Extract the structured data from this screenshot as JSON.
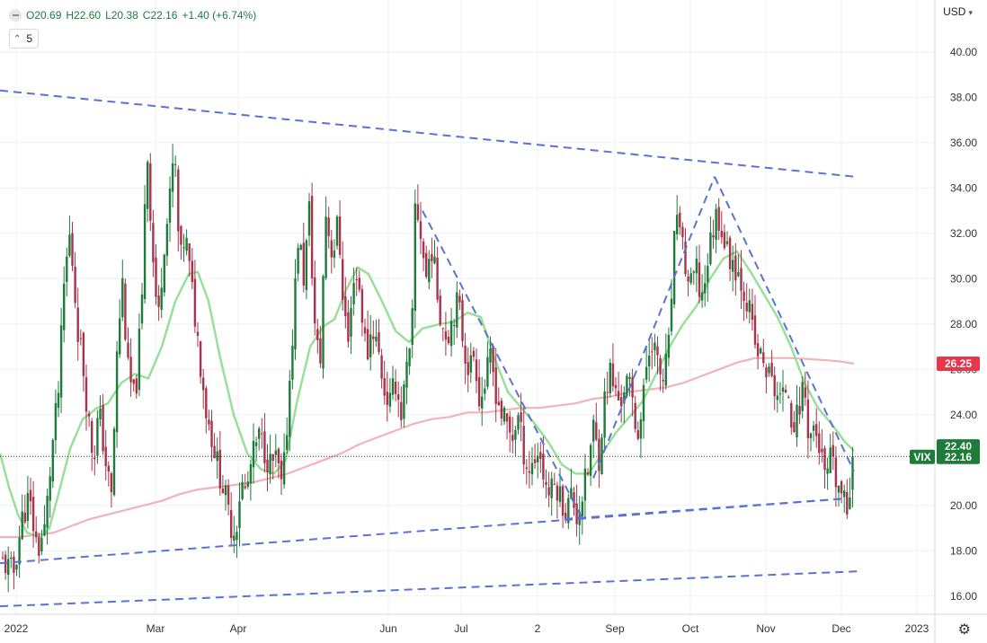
{
  "header": {
    "open": "O20.69",
    "high": "H22.60",
    "low": "L20.38",
    "close": "C22.16",
    "change": "+1.40 (+6.74%)"
  },
  "interval_label": "5",
  "currency_label": "USD",
  "colors": {
    "up": "#1e7b3a",
    "down": "#a8334a",
    "ma_short": "#96df96",
    "ma_long": "#f2b3b7",
    "trendline": "#5a72d6",
    "grid": "#eef0f3",
    "price_badge": "#1e7b3a",
    "ma_long_badge": "#e8374a"
  },
  "chart_data": {
    "type": "candlestick",
    "symbol": "VIX",
    "ylim": [
      15.2,
      41.1
    ],
    "y_ticks": [
      "16.00",
      "18.00",
      "20.00",
      "22.00",
      "24.00",
      "26.00",
      "28.00",
      "30.00",
      "32.00",
      "34.00",
      "36.00",
      "38.00",
      "40.00"
    ],
    "x_range": [
      0,
      1040
    ],
    "x_ticks": [
      {
        "x": 18,
        "label": "2022"
      },
      {
        "x": 173,
        "label": "Mar"
      },
      {
        "x": 265,
        "label": "Apr"
      },
      {
        "x": 432,
        "label": "Jun"
      },
      {
        "x": 513,
        "label": "Jul"
      },
      {
        "x": 598,
        "label": "2"
      },
      {
        "x": 684,
        "label": "Sep"
      },
      {
        "x": 768,
        "label": "Oct"
      },
      {
        "x": 852,
        "label": "Nov"
      },
      {
        "x": 936,
        "label": "Dec"
      },
      {
        "x": 1020,
        "label": "2023"
      }
    ],
    "close_path": [
      [
        3,
        17.5
      ],
      [
        15,
        17.0
      ],
      [
        25,
        19.5
      ],
      [
        32,
        20.3
      ],
      [
        42,
        18.0
      ],
      [
        50,
        19.0
      ],
      [
        58,
        22.5
      ],
      [
        65,
        25.0
      ],
      [
        72,
        30.2
      ],
      [
        78,
        32.0
      ],
      [
        86,
        28.0
      ],
      [
        92,
        26.3
      ],
      [
        98,
        24.0
      ],
      [
        104,
        22.0
      ],
      [
        110,
        24.2
      ],
      [
        118,
        21.8
      ],
      [
        124,
        20.3
      ],
      [
        130,
        26.5
      ],
      [
        136,
        30.0
      ],
      [
        142,
        26.0
      ],
      [
        150,
        24.5
      ],
      [
        158,
        29.0
      ],
      [
        163,
        36.3
      ],
      [
        170,
        31.0
      ],
      [
        176,
        28.0
      ],
      [
        182,
        31.5
      ],
      [
        188,
        33.0
      ],
      [
        194,
        35.8
      ],
      [
        200,
        30.5
      ],
      [
        206,
        32.0
      ],
      [
        212,
        30.0
      ],
      [
        218,
        28.0
      ],
      [
        224,
        26.0
      ],
      [
        230,
        24.0
      ],
      [
        236,
        23.0
      ],
      [
        242,
        21.8
      ],
      [
        250,
        20.5
      ],
      [
        256,
        19.2
      ],
      [
        262,
        18.8
      ],
      [
        268,
        21.0
      ],
      [
        274,
        20.5
      ],
      [
        280,
        22.0
      ],
      [
        288,
        23.0
      ],
      [
        294,
        22.5
      ],
      [
        300,
        21.8
      ],
      [
        308,
        22.0
      ],
      [
        314,
        20.5
      ],
      [
        320,
        24.0
      ],
      [
        326,
        28.0
      ],
      [
        332,
        32.0
      ],
      [
        338,
        30.0
      ],
      [
        344,
        33.0
      ],
      [
        350,
        28.0
      ],
      [
        356,
        26.0
      ],
      [
        362,
        33.0
      ],
      [
        370,
        31.0
      ],
      [
        376,
        32.5
      ],
      [
        382,
        29.0
      ],
      [
        388,
        27.0
      ],
      [
        394,
        30.5
      ],
      [
        400,
        29.5
      ],
      [
        408,
        26.5
      ],
      [
        414,
        28.0
      ],
      [
        420,
        27.0
      ],
      [
        428,
        25.0
      ],
      [
        434,
        24.5
      ],
      [
        440,
        25.5
      ],
      [
        446,
        24.0
      ],
      [
        452,
        25.8
      ],
      [
        458,
        27.0
      ],
      [
        462,
        33.5
      ],
      [
        468,
        32.0
      ],
      [
        474,
        30.0
      ],
      [
        480,
        31.5
      ],
      [
        486,
        29.5
      ],
      [
        492,
        28.0
      ],
      [
        498,
        27.5
      ],
      [
        504,
        28.5
      ],
      [
        510,
        29.0
      ],
      [
        516,
        27.0
      ],
      [
        522,
        26.0
      ],
      [
        528,
        26.8
      ],
      [
        534,
        24.5
      ],
      [
        540,
        25.5
      ],
      [
        546,
        26.5
      ],
      [
        552,
        25.0
      ],
      [
        558,
        24.0
      ],
      [
        564,
        23.5
      ],
      [
        570,
        23.0
      ],
      [
        576,
        24.0
      ],
      [
        582,
        22.5
      ],
      [
        588,
        21.5
      ],
      [
        594,
        22.0
      ],
      [
        600,
        22.5
      ],
      [
        606,
        21.0
      ],
      [
        612,
        20.5
      ],
      [
        618,
        21.0
      ],
      [
        624,
        20.3
      ],
      [
        630,
        19.8
      ],
      [
        636,
        20.5
      ],
      [
        642,
        19.5
      ],
      [
        648,
        20.5
      ],
      [
        654,
        21.5
      ],
      [
        660,
        23.5
      ],
      [
        666,
        22.0
      ],
      [
        672,
        24.5
      ],
      [
        678,
        26.0
      ],
      [
        684,
        25.0
      ],
      [
        690,
        24.5
      ],
      [
        696,
        25.5
      ],
      [
        702,
        25.0
      ],
      [
        708,
        23.2
      ],
      [
        714,
        24.0
      ],
      [
        720,
        26.5
      ],
      [
        726,
        27.5
      ],
      [
        732,
        26.0
      ],
      [
        738,
        25.5
      ],
      [
        744,
        27.0
      ],
      [
        750,
        31.5
      ],
      [
        756,
        32.8
      ],
      [
        762,
        30.5
      ],
      [
        768,
        29.5
      ],
      [
        774,
        30.5
      ],
      [
        780,
        29.0
      ],
      [
        786,
        30.5
      ],
      [
        792,
        32.0
      ],
      [
        798,
        33.0
      ],
      [
        804,
        32.0
      ],
      [
        810,
        31.0
      ],
      [
        816,
        30.8
      ],
      [
        822,
        30.2
      ],
      [
        828,
        29.5
      ],
      [
        834,
        28.5
      ],
      [
        840,
        27.0
      ],
      [
        846,
        26.5
      ],
      [
        852,
        26.0
      ],
      [
        858,
        25.5
      ],
      [
        864,
        25.0
      ],
      [
        870,
        24.5
      ],
      [
        876,
        25.5
      ],
      [
        882,
        23.5
      ],
      [
        888,
        24.0
      ],
      [
        894,
        25.5
      ],
      [
        900,
        23.0
      ],
      [
        906,
        23.5
      ],
      [
        912,
        22.5
      ],
      [
        918,
        21.0
      ],
      [
        924,
        22.0
      ],
      [
        930,
        21.0
      ],
      [
        936,
        20.5
      ],
      [
        942,
        19.6
      ],
      [
        946,
        21.0
      ],
      [
        950,
        22.16
      ]
    ],
    "ma_short": [
      [
        0,
        22.3
      ],
      [
        10,
        20.8
      ],
      [
        20,
        19.6
      ],
      [
        30,
        18.8
      ],
      [
        45,
        18.6
      ],
      [
        55,
        19.0
      ],
      [
        65,
        20.5
      ],
      [
        78,
        22.5
      ],
      [
        92,
        23.8
      ],
      [
        108,
        24.3
      ],
      [
        120,
        24.5
      ],
      [
        135,
        25.4
      ],
      [
        150,
        25.8
      ],
      [
        165,
        25.6
      ],
      [
        180,
        27.0
      ],
      [
        195,
        29.0
      ],
      [
        210,
        30.2
      ],
      [
        220,
        30.3
      ],
      [
        232,
        29.0
      ],
      [
        245,
        26.5
      ],
      [
        260,
        24.0
      ],
      [
        275,
        22.3
      ],
      [
        290,
        21.6
      ],
      [
        305,
        21.4
      ],
      [
        318,
        22.0
      ],
      [
        330,
        24.5
      ],
      [
        345,
        27.0
      ],
      [
        360,
        27.9
      ],
      [
        372,
        28.2
      ],
      [
        385,
        29.5
      ],
      [
        398,
        30.5
      ],
      [
        410,
        30.2
      ],
      [
        425,
        29.0
      ],
      [
        440,
        27.7
      ],
      [
        455,
        27.2
      ],
      [
        470,
        27.8
      ],
      [
        490,
        28.0
      ],
      [
        505,
        28.1
      ],
      [
        520,
        28.5
      ],
      [
        535,
        28.3
      ],
      [
        550,
        26.5
      ],
      [
        565,
        25.0
      ],
      [
        580,
        24.3
      ],
      [
        595,
        23.6
      ],
      [
        610,
        22.8
      ],
      [
        625,
        21.8
      ],
      [
        640,
        21.4
      ],
      [
        655,
        21.4
      ],
      [
        670,
        22.3
      ],
      [
        685,
        23.2
      ],
      [
        700,
        23.9
      ],
      [
        715,
        24.6
      ],
      [
        730,
        25.8
      ],
      [
        745,
        27.0
      ],
      [
        760,
        28.0
      ],
      [
        775,
        28.8
      ],
      [
        790,
        30.0
      ],
      [
        805,
        30.9
      ],
      [
        820,
        31.2
      ],
      [
        835,
        30.3
      ],
      [
        850,
        29.3
      ],
      [
        865,
        28.3
      ],
      [
        880,
        27.0
      ],
      [
        895,
        25.4
      ],
      [
        910,
        24.3
      ],
      [
        925,
        23.6
      ],
      [
        940,
        22.8
      ],
      [
        950,
        22.4
      ]
    ],
    "ma_long": [
      [
        0,
        18.6
      ],
      [
        20,
        18.6
      ],
      [
        40,
        18.7
      ],
      [
        60,
        18.8
      ],
      [
        80,
        19.1
      ],
      [
        100,
        19.4
      ],
      [
        120,
        19.6
      ],
      [
        140,
        19.8
      ],
      [
        160,
        20.0
      ],
      [
        180,
        20.2
      ],
      [
        200,
        20.5
      ],
      [
        220,
        20.7
      ],
      [
        240,
        20.8
      ],
      [
        260,
        20.9
      ],
      [
        280,
        21.0
      ],
      [
        300,
        21.2
      ],
      [
        320,
        21.4
      ],
      [
        340,
        21.7
      ],
      [
        360,
        22.0
      ],
      [
        380,
        22.3
      ],
      [
        400,
        22.7
      ],
      [
        420,
        23.0
      ],
      [
        440,
        23.3
      ],
      [
        460,
        23.6
      ],
      [
        480,
        23.8
      ],
      [
        500,
        23.9
      ],
      [
        520,
        24.1
      ],
      [
        540,
        24.1
      ],
      [
        560,
        24.2
      ],
      [
        580,
        24.3
      ],
      [
        600,
        24.3
      ],
      [
        620,
        24.4
      ],
      [
        640,
        24.5
      ],
      [
        660,
        24.7
      ],
      [
        680,
        24.8
      ],
      [
        700,
        25.0
      ],
      [
        720,
        25.1
      ],
      [
        740,
        25.2
      ],
      [
        760,
        25.4
      ],
      [
        780,
        25.7
      ],
      [
        800,
        26.0
      ],
      [
        820,
        26.3
      ],
      [
        840,
        26.5
      ],
      [
        860,
        26.5
      ],
      [
        880,
        26.5
      ],
      [
        900,
        26.45
      ],
      [
        920,
        26.4
      ],
      [
        935,
        26.35
      ],
      [
        950,
        26.25
      ]
    ],
    "trendlines": [
      {
        "points": [
          [
            0,
            38.3
          ],
          [
            950,
            34.5
          ]
        ],
        "dash": "9,6"
      },
      {
        "points": [
          [
            0,
            17.45
          ],
          [
            940,
            20.3
          ]
        ],
        "dash": "9,6"
      },
      {
        "points": [
          [
            0,
            15.55
          ],
          [
            958,
            17.1
          ]
        ],
        "dash": "9,6"
      },
      {
        "points": [
          [
            470,
            33.0
          ],
          [
            648,
            19.4
          ]
        ],
        "dash": "9,6"
      },
      {
        "points": [
          [
            628,
            19.4
          ],
          [
            940,
            20.3
          ]
        ],
        "dash": "9,6"
      },
      {
        "points": [
          [
            660,
            21.2
          ],
          [
            795,
            34.5
          ]
        ],
        "dash": "9,6"
      },
      {
        "points": [
          [
            795,
            34.5
          ],
          [
            950,
            21.5
          ]
        ],
        "dash": "9,6"
      }
    ],
    "last_price_label": "22.16",
    "last_price_value": 22.16,
    "ma_short_label": "22.40",
    "ma_short_value": 22.4,
    "ma_long_label": "26.25",
    "ma_long_value": 26.25
  }
}
